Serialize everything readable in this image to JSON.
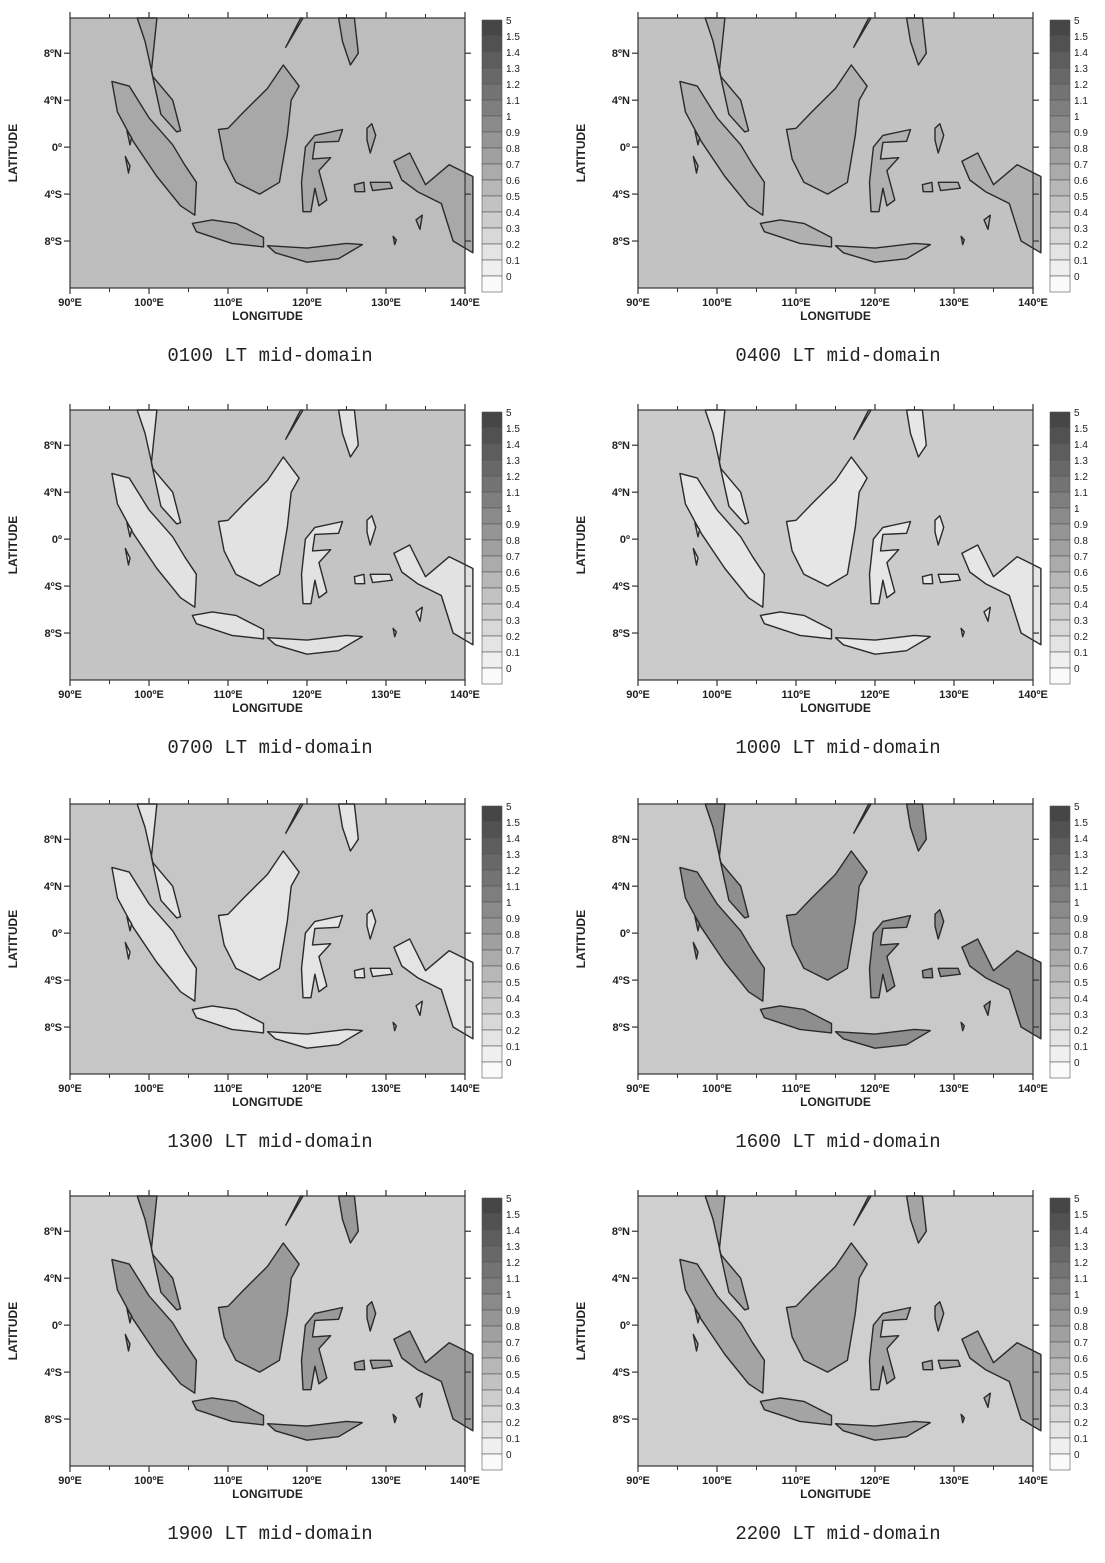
{
  "figure": {
    "x_axis_title": "LONGITUDE",
    "y_axis_title": "LATITUDE",
    "lon_ticks": [
      "90ºE",
      "100ºE",
      "110ºE",
      "120ºE",
      "130ºE",
      "140ºE"
    ],
    "lat_ticks": [
      "8ºN",
      "4ºN",
      "0º",
      "4ºS",
      "8ºS"
    ],
    "colorbar_ticks": [
      "5",
      "1.5",
      "1.4",
      "1.3",
      "1.2",
      "1.1",
      "1",
      "0.9",
      "0.8",
      "0.7",
      "0.6",
      "0.5",
      "0.4",
      "0.3",
      "0.2",
      "0.1",
      "0"
    ]
  },
  "panels": [
    {
      "caption": "0100 LT mid-domain",
      "land_shade": "#a8a8a8",
      "ocean_shade": "#bdbdbd"
    },
    {
      "caption": "0400 LT mid-domain",
      "land_shade": "#b0b0b0",
      "ocean_shade": "#c2c2c2"
    },
    {
      "caption": "0700 LT mid-domain",
      "land_shade": "#e2e2e2",
      "ocean_shade": "#c4c4c4"
    },
    {
      "caption": "1000 LT mid-domain",
      "land_shade": "#e6e6e6",
      "ocean_shade": "#cbcbcb"
    },
    {
      "caption": "1300 LT mid-domain",
      "land_shade": "#e4e4e4",
      "ocean_shade": "#c6c6c6"
    },
    {
      "caption": "1600 LT mid-domain",
      "land_shade": "#8e8e8e",
      "ocean_shade": "#c9c9c9"
    },
    {
      "caption": "1900 LT mid-domain",
      "land_shade": "#9a9a9a",
      "ocean_shade": "#d0d0d0"
    },
    {
      "caption": "2200 LT mid-domain",
      "land_shade": "#a4a4a4",
      "ocean_shade": "#cfcfcf"
    }
  ]
}
